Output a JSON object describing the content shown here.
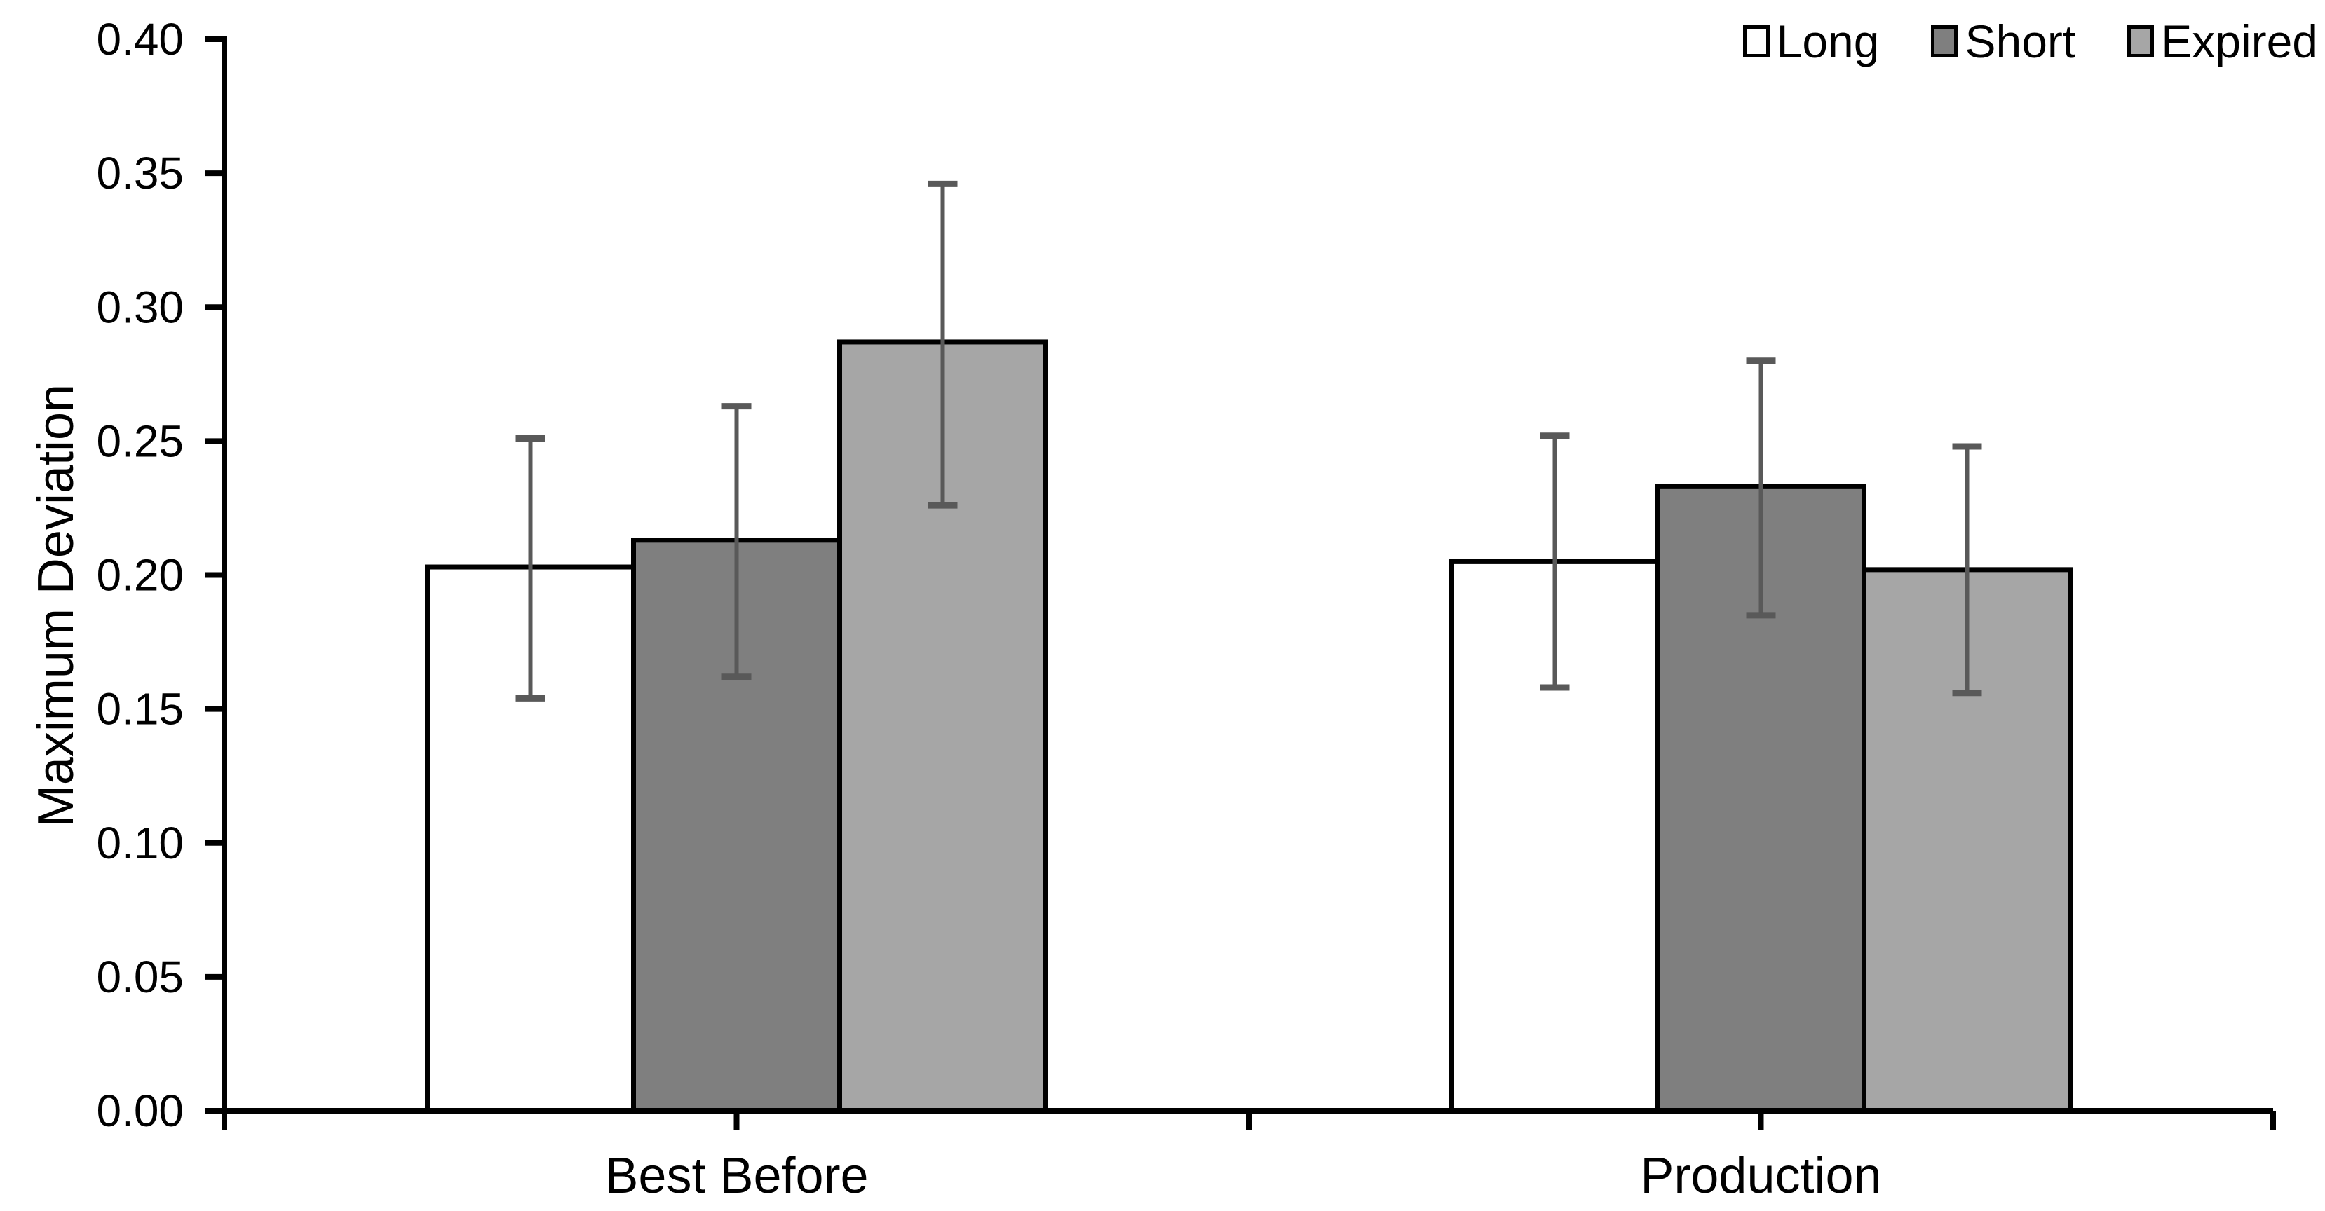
{
  "chart_data": {
    "type": "bar",
    "title": "",
    "xlabel": "",
    "ylabel": "Maximum Deviation",
    "categories": [
      "Best Before",
      "Production"
    ],
    "series": [
      {
        "name": "Long",
        "fill": "#ffffff",
        "values": [
          0.203,
          0.205
        ],
        "error_upper": [
          0.251,
          0.252
        ],
        "error_lower": [
          0.154,
          0.158
        ]
      },
      {
        "name": "Short",
        "fill": "#7f7f7f",
        "values": [
          0.213,
          0.233
        ],
        "error_upper": [
          0.263,
          0.28
        ],
        "error_lower": [
          0.162,
          0.185
        ]
      },
      {
        "name": "Expired",
        "fill": "#a6a6a6",
        "values": [
          0.287,
          0.202
        ],
        "error_upper": [
          0.346,
          0.248
        ],
        "error_lower": [
          0.226,
          0.156
        ]
      }
    ],
    "ylim": [
      0,
      0.4
    ],
    "ytick_step": 0.05,
    "ytick_labels": [
      "0.00",
      "0.05",
      "0.10",
      "0.15",
      "0.20",
      "0.25",
      "0.30",
      "0.35",
      "0.40"
    ],
    "grid": false,
    "legend": {
      "position": "top-right",
      "entries": [
        "Long",
        "Short",
        "Expired"
      ]
    },
    "colors": {
      "axis": "#000000",
      "text": "#000000",
      "error_bar": "#595959",
      "background": "#ffffff",
      "long_fill": "#ffffff",
      "short_fill": "#7f7f7f",
      "expired_fill": "#a6a6a6"
    }
  }
}
